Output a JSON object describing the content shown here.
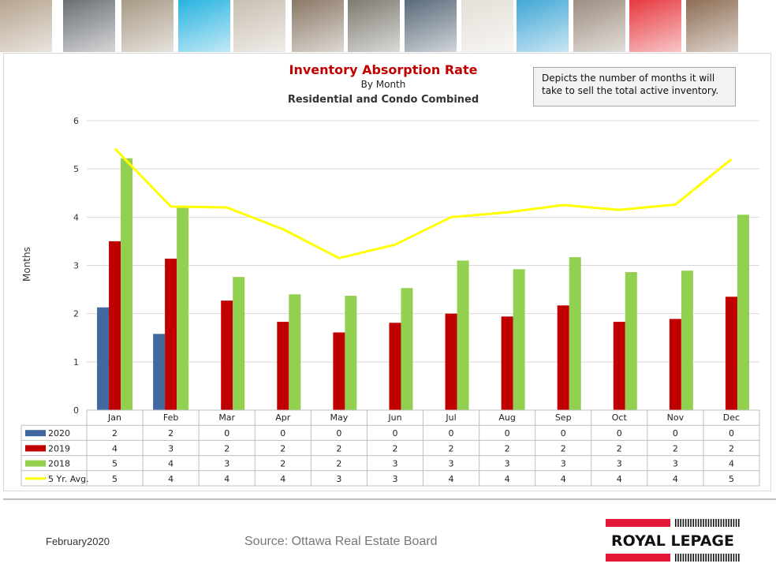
{
  "banner": {
    "tiles": [
      {
        "color": "#b6a48f"
      },
      {
        "color": "#6b6f74"
      },
      {
        "color": "#a89a86"
      },
      {
        "color": "#27b3e0"
      },
      {
        "color": "#c9bfb2"
      },
      {
        "color": "#8a7866"
      },
      {
        "color": "#7d7a70"
      },
      {
        "color": "#5a6a7a"
      },
      {
        "color": "#e4dfd7"
      },
      {
        "color": "#41a7d6"
      },
      {
        "color": "#9c8d80"
      },
      {
        "color": "#e7383f"
      },
      {
        "color": "#8d6d54"
      }
    ]
  },
  "chart": {
    "title": "Inventory Absorption Rate",
    "subtitle": "By Month",
    "subtitle2": "Residential and Condo Combined",
    "note": "Depicts the number of months it will take to sell the total active inventory.",
    "ylabel": "Months"
  },
  "chart_data": {
    "type": "bar",
    "categories": [
      "Jan",
      "Feb",
      "Mar",
      "Apr",
      "May",
      "Jun",
      "Jul",
      "Aug",
      "Sep",
      "Oct",
      "Nov",
      "Dec"
    ],
    "ylim": [
      0,
      6
    ],
    "yticks": [
      0,
      1,
      2,
      3,
      4,
      5,
      6
    ],
    "grid": true,
    "series": [
      {
        "name": "2020",
        "kind": "bar",
        "color": "#4169a0",
        "values": [
          2.13,
          1.58,
          0,
          0,
          0,
          0,
          0,
          0,
          0,
          0,
          0,
          0
        ],
        "table": [
          "2",
          "2",
          "0",
          "0",
          "0",
          "0",
          "0",
          "0",
          "0",
          "0",
          "0",
          "0"
        ]
      },
      {
        "name": "2019",
        "kind": "bar",
        "color": "#c00000",
        "values": [
          3.5,
          3.14,
          2.27,
          1.83,
          1.61,
          1.81,
          2.0,
          1.94,
          2.17,
          1.83,
          1.89,
          2.35
        ],
        "table": [
          "4",
          "3",
          "2",
          "2",
          "2",
          "2",
          "2",
          "2",
          "2",
          "2",
          "2",
          "2"
        ]
      },
      {
        "name": "2018",
        "kind": "bar",
        "color": "#92d050",
        "values": [
          5.22,
          4.2,
          2.76,
          2.4,
          2.37,
          2.53,
          3.1,
          2.92,
          3.17,
          2.86,
          2.89,
          4.05
        ],
        "table": [
          "5",
          "4",
          "3",
          "2",
          "2",
          "3",
          "3",
          "3",
          "3",
          "3",
          "3",
          "4"
        ]
      },
      {
        "name": "5 Yr. Avg.",
        "kind": "line",
        "color": "#ffff00",
        "values": [
          5.42,
          4.22,
          4.2,
          3.75,
          3.15,
          3.43,
          4.0,
          4.1,
          4.25,
          4.15,
          4.26,
          5.2
        ],
        "table": [
          "5",
          "4",
          "4",
          "4",
          "3",
          "3",
          "4",
          "4",
          "4",
          "4",
          "4",
          "5"
        ]
      }
    ]
  },
  "footer": {
    "date": "February2020",
    "source": "Source: Ottawa Real Estate Board",
    "logo": "ROYAL LEPAGE",
    "logo_colors": {
      "red": "#e31837",
      "black": "#111111"
    }
  }
}
